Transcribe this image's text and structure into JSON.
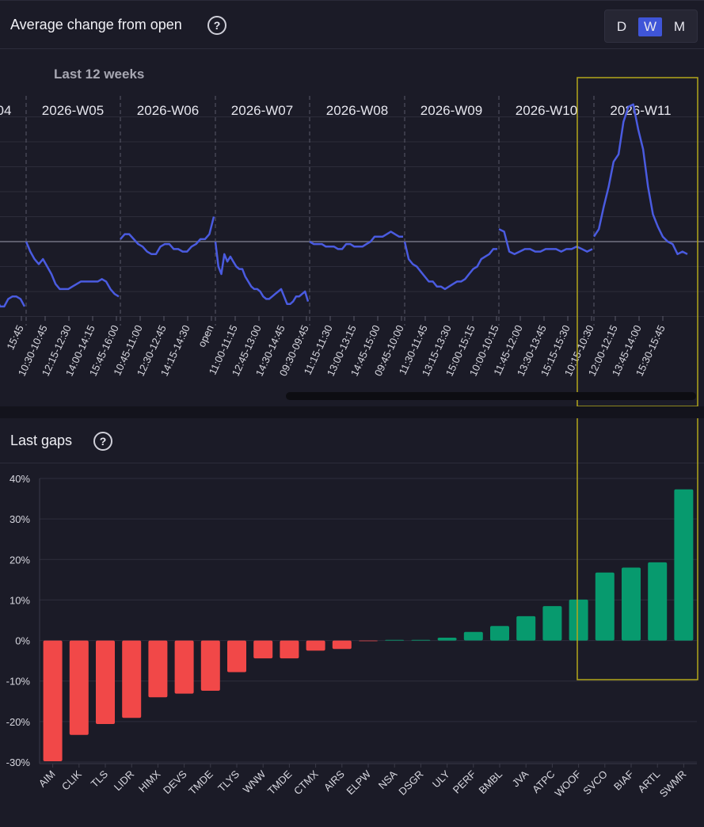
{
  "top_panel": {
    "title": "Average change from open",
    "help": "?",
    "range_label": "Last 12 weeks",
    "toggle": {
      "options": [
        "D",
        "W",
        "M"
      ],
      "selected": "W"
    }
  },
  "bottom_panel": {
    "title": "Last gaps",
    "help": "?"
  },
  "colors": {
    "line": "#4a5be0",
    "positive": "#079a6e",
    "negative": "#f14848",
    "highlight": "#b3a71c",
    "toggle_active": "#3f55d8"
  },
  "chart_data": [
    {
      "type": "line",
      "title": "Average change from open",
      "subtitle": "Last 12 weeks",
      "weeks": [
        {
          "label": "04",
          "values": [
            -2.2,
            -2.6,
            -2.6,
            -2.3,
            -2.2,
            -2.2,
            -2.3,
            -2.6
          ]
        },
        {
          "label": "2026-W05",
          "values": [
            0,
            -0.4,
            -0.7,
            -0.9,
            -0.7,
            -1.0,
            -1.3,
            -1.7,
            -1.9,
            -1.9,
            -1.9,
            -1.8,
            -1.7,
            -1.6,
            -1.6,
            -1.6,
            -1.6,
            -1.6,
            -1.5,
            -1.6,
            -1.9,
            -2.1,
            -2.2
          ]
        },
        {
          "label": "2026-W06",
          "values": [
            0.1,
            0.3,
            0.3,
            0.1,
            -0.1,
            -0.2,
            -0.4,
            -0.5,
            -0.5,
            -0.2,
            -0.1,
            -0.1,
            -0.3,
            -0.3,
            -0.4,
            -0.4,
            -0.2,
            -0.1,
            0.1,
            0.1,
            0.3,
            1.0
          ]
        },
        {
          "label": "2026-W07",
          "values": [
            0,
            -1.0,
            -1.3,
            -0.5,
            -0.8,
            -0.6,
            -0.8,
            -1.0,
            -1.1,
            -1.1,
            -1.4,
            -1.6,
            -1.8,
            -1.9,
            -1.9,
            -2.0,
            -2.2,
            -2.3,
            -2.3,
            -2.2,
            -2.1,
            -2.0,
            -1.9,
            -2.2,
            -2.5,
            -2.5,
            -2.4,
            -2.2,
            -2.2,
            -2.1,
            -2.0,
            -2.4
          ]
        },
        {
          "label": "2026-W08",
          "values": [
            0,
            -0.1,
            -0.1,
            -0.1,
            -0.2,
            -0.2,
            -0.2,
            -0.3,
            -0.3,
            -0.1,
            -0.1,
            -0.2,
            -0.2,
            -0.2,
            -0.1,
            0.0,
            0.2,
            0.2,
            0.2,
            0.3,
            0.4,
            0.3,
            0.2,
            0.2
          ]
        },
        {
          "label": "2026-W09",
          "values": [
            0,
            -0.7,
            -0.9,
            -1.0,
            -1.2,
            -1.4,
            -1.6,
            -1.6,
            -1.8,
            -1.8,
            -1.9,
            -1.8,
            -1.7,
            -1.6,
            -1.6,
            -1.5,
            -1.3,
            -1.1,
            -1.0,
            -0.7,
            -0.6,
            -0.5,
            -0.3,
            -0.3
          ]
        },
        {
          "label": "2026-W10",
          "values": [
            0.5,
            0.4,
            -0.4,
            -0.5,
            -0.4,
            -0.3,
            -0.3,
            -0.4,
            -0.4,
            -0.3,
            -0.3,
            -0.3,
            -0.4,
            -0.3,
            -0.3,
            -0.2,
            -0.3,
            -0.4,
            -0.3
          ]
        },
        {
          "label": "2026-W11",
          "values": [
            0.2,
            0.5,
            1.4,
            2.2,
            3.2,
            3.5,
            4.8,
            5.4,
            5.5,
            4.5,
            3.7,
            2.2,
            1.1,
            0.6,
            0.2,
            0.0,
            -0.1,
            -0.5,
            -0.4,
            -0.5
          ]
        }
      ],
      "x_tick_labels": [
        "15:45",
        "10:30-10:45",
        "12:15-12:30",
        "14:00-14:15",
        "15:45-16:00",
        "10:45-11:00",
        "12:30-12:45",
        "14:15-14:30",
        "open",
        "11:00-11:15",
        "12:45-13:00",
        "14:30-14:45",
        "09:30-09:45",
        "11:15-11:30",
        "13:00-13:15",
        "14:45-15:00",
        "09:45-10:00",
        "11:30-11:45",
        "13:15-13:30",
        "15:00-15:15",
        "10:00-10:15",
        "11:45-12:00",
        "13:30-13:45",
        "15:15-15:30",
        "10:15-10:30",
        "12:00-12:15",
        "13:45-14:00",
        "15:30-15:45"
      ],
      "y_step": 1,
      "ylim": [
        -3.2,
        5.3
      ]
    },
    {
      "type": "bar",
      "title": "Last gaps",
      "categories": [
        "AIM",
        "CLIK",
        "TLS",
        "LIDR",
        "HIMX",
        "DEVS",
        "TMDE",
        "TLYS",
        "WNW",
        "TMDE",
        "CTMX",
        "AIRS",
        "ELPW",
        "NSA",
        "DSGR",
        "ULY",
        "PERF",
        "BMBL",
        "JVA",
        "ATPC",
        "WOOF",
        "SVCO",
        "BIAF",
        "ARTL",
        "SWMR"
      ],
      "values": [
        -29.8,
        -23.3,
        -20.6,
        -19.1,
        -14.0,
        -13.1,
        -12.4,
        -7.8,
        -4.4,
        -4.4,
        -2.5,
        -2.1,
        -0.1,
        0.0,
        0.1,
        0.7,
        2.1,
        3.6,
        6.0,
        8.5,
        10.1,
        16.8,
        18.0,
        19.3,
        37.3
      ],
      "y_ticks": [
        "40%",
        "30%",
        "20%",
        "10%",
        "0%",
        "-10%",
        "-20%",
        "-30%"
      ],
      "ylim": [
        -30,
        40
      ],
      "xlabel": "",
      "ylabel": ""
    }
  ]
}
